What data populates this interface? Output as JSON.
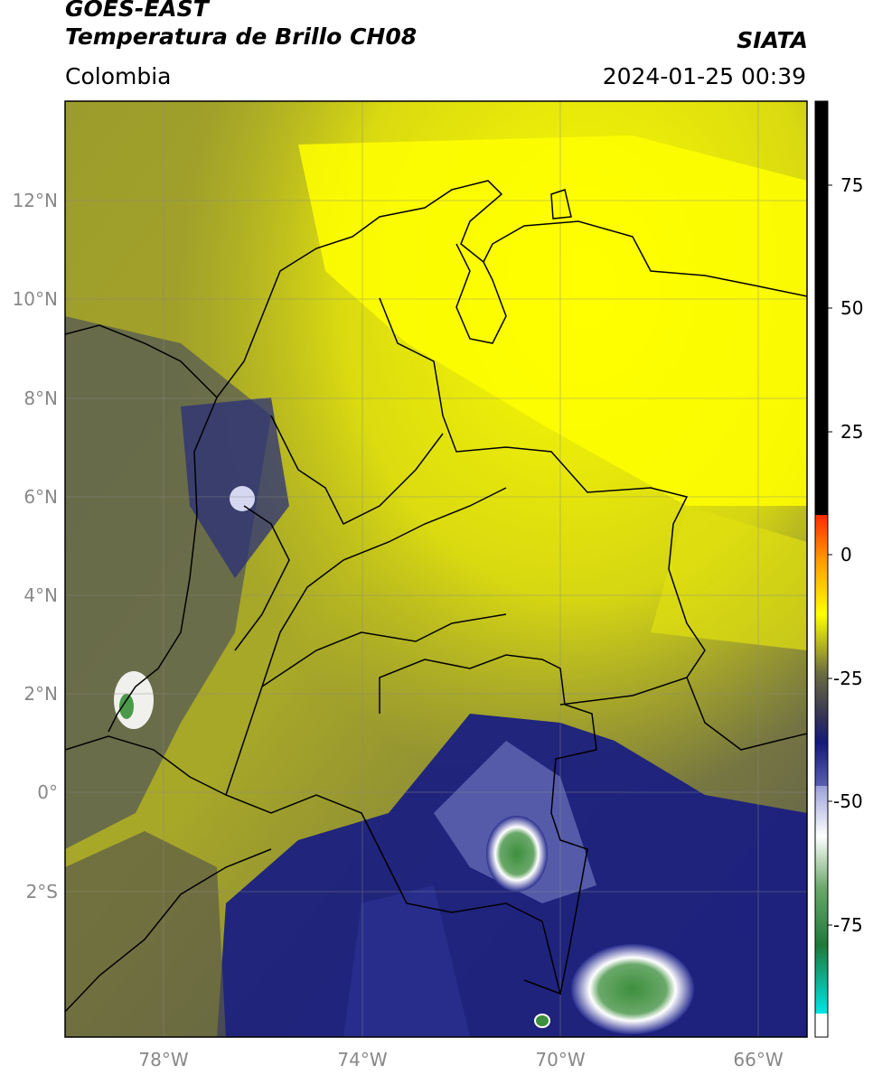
{
  "header": {
    "satellite": "GOES-EAST",
    "product": "Temperatura de Brillo CH08",
    "brand": "SIATA",
    "region": "Colombia",
    "timestamp": "2024-01-25 00:39"
  },
  "map": {
    "lat_labels": [
      "12°N",
      "10°N",
      "8°N",
      "6°N",
      "4°N",
      "2°N",
      "0°",
      "2°S"
    ],
    "lon_labels": [
      "78°W",
      "74°W",
      "70°W",
      "66°W"
    ],
    "gridlines": true
  },
  "colorbar": {
    "ticks": [
      "75",
      "50",
      "25",
      "0",
      "-25",
      "-50",
      "-75"
    ],
    "colors": {
      "black": "#000000",
      "red": "#ff2a00",
      "orange": "#ff9a00",
      "yellow": "#ffff00",
      "olive": "#7a7a3a",
      "navy": "#141a7a",
      "white": "#ffffff",
      "green": "#2e8b2e",
      "cyan": "#00e5e5"
    }
  }
}
